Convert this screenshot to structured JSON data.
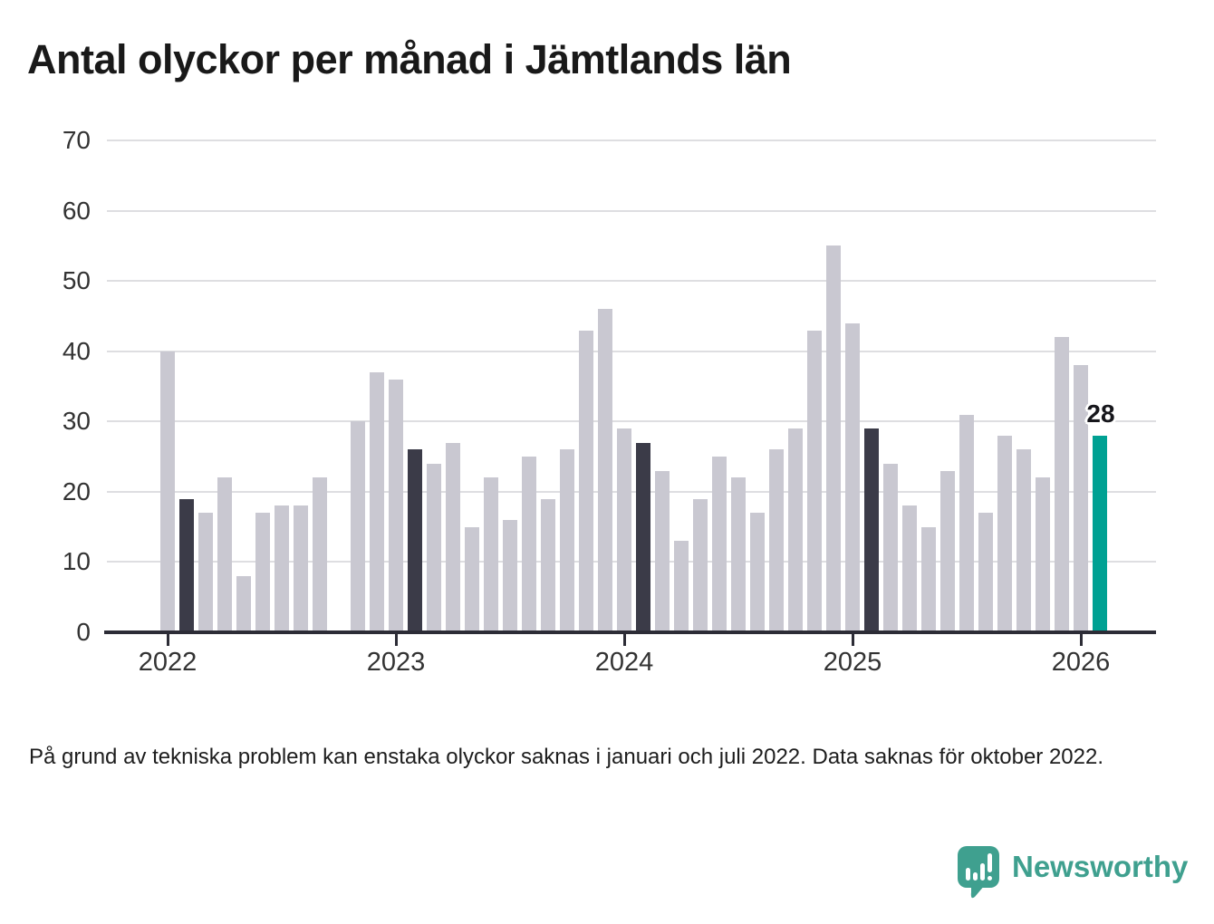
{
  "chart_data": {
    "type": "bar",
    "title": "Antal olyckor per månad i Jämtlands län",
    "xlabel": "",
    "ylabel": "",
    "ylim": [
      0,
      70
    ],
    "yticks": [
      0,
      10,
      20,
      30,
      40,
      50,
      60,
      70
    ],
    "x_tick_labels": [
      "2022",
      "2023",
      "2024",
      "2025",
      "2026"
    ],
    "grid": "horizontal",
    "legend": "none",
    "missing_months": [
      "2022-10"
    ],
    "annotation": {
      "label": "28",
      "month": "2026-02"
    },
    "colors": {
      "base": "#C9C8D1",
      "dark": "#3B3B48",
      "accent": "#00A193",
      "axis": "#2C2C36",
      "grid": "#DEDEE1"
    },
    "bars": [
      {
        "month": "2022-01",
        "value": 40,
        "style": "base"
      },
      {
        "month": "2022-02",
        "value": 19,
        "style": "dark"
      },
      {
        "month": "2022-03",
        "value": 17,
        "style": "base"
      },
      {
        "month": "2022-04",
        "value": 22,
        "style": "base"
      },
      {
        "month": "2022-05",
        "value": 8,
        "style": "base"
      },
      {
        "month": "2022-06",
        "value": 17,
        "style": "base"
      },
      {
        "month": "2022-07",
        "value": 18,
        "style": "base"
      },
      {
        "month": "2022-08",
        "value": 18,
        "style": "base"
      },
      {
        "month": "2022-09",
        "value": 22,
        "style": "base"
      },
      {
        "month": "2022-11",
        "value": 30,
        "style": "base"
      },
      {
        "month": "2022-12",
        "value": 37,
        "style": "base"
      },
      {
        "month": "2023-01",
        "value": 36,
        "style": "base"
      },
      {
        "month": "2023-02",
        "value": 26,
        "style": "dark"
      },
      {
        "month": "2023-03",
        "value": 24,
        "style": "base"
      },
      {
        "month": "2023-04",
        "value": 27,
        "style": "base"
      },
      {
        "month": "2023-05",
        "value": 15,
        "style": "base"
      },
      {
        "month": "2023-06",
        "value": 22,
        "style": "base"
      },
      {
        "month": "2023-07",
        "value": 16,
        "style": "base"
      },
      {
        "month": "2023-08",
        "value": 25,
        "style": "base"
      },
      {
        "month": "2023-09",
        "value": 19,
        "style": "base"
      },
      {
        "month": "2023-10",
        "value": 26,
        "style": "base"
      },
      {
        "month": "2023-11",
        "value": 43,
        "style": "base"
      },
      {
        "month": "2023-12",
        "value": 46,
        "style": "base"
      },
      {
        "month": "2024-01",
        "value": 29,
        "style": "base"
      },
      {
        "month": "2024-02",
        "value": 27,
        "style": "dark"
      },
      {
        "month": "2024-03",
        "value": 23,
        "style": "base"
      },
      {
        "month": "2024-04",
        "value": 13,
        "style": "base"
      },
      {
        "month": "2024-05",
        "value": 19,
        "style": "base"
      },
      {
        "month": "2024-06",
        "value": 25,
        "style": "base"
      },
      {
        "month": "2024-07",
        "value": 22,
        "style": "base"
      },
      {
        "month": "2024-08",
        "value": 17,
        "style": "base"
      },
      {
        "month": "2024-09",
        "value": 26,
        "style": "base"
      },
      {
        "month": "2024-10",
        "value": 29,
        "style": "base"
      },
      {
        "month": "2024-11",
        "value": 43,
        "style": "base"
      },
      {
        "month": "2024-12",
        "value": 55,
        "style": "base"
      },
      {
        "month": "2025-01",
        "value": 44,
        "style": "base"
      },
      {
        "month": "2025-02",
        "value": 29,
        "style": "dark"
      },
      {
        "month": "2025-03",
        "value": 24,
        "style": "base"
      },
      {
        "month": "2025-04",
        "value": 18,
        "style": "base"
      },
      {
        "month": "2025-05",
        "value": 15,
        "style": "base"
      },
      {
        "month": "2025-06",
        "value": 23,
        "style": "base"
      },
      {
        "month": "2025-07",
        "value": 31,
        "style": "base"
      },
      {
        "month": "2025-08",
        "value": 17,
        "style": "base"
      },
      {
        "month": "2025-09",
        "value": 28,
        "style": "base"
      },
      {
        "month": "2025-10",
        "value": 26,
        "style": "base"
      },
      {
        "month": "2025-11",
        "value": 22,
        "style": "base"
      },
      {
        "month": "2025-12",
        "value": 42,
        "style": "base"
      },
      {
        "month": "2026-01",
        "value": 38,
        "style": "base"
      },
      {
        "month": "2026-02",
        "value": 28,
        "style": "accent"
      }
    ]
  },
  "notes": {
    "footnote": "På grund av tekniska problem kan enstaka olyckor saknas i januari och juli 2022. Data saknas för oktober 2022."
  },
  "branding": {
    "logo_text": "Newsworthy",
    "logo_color": "#3FA08F"
  }
}
